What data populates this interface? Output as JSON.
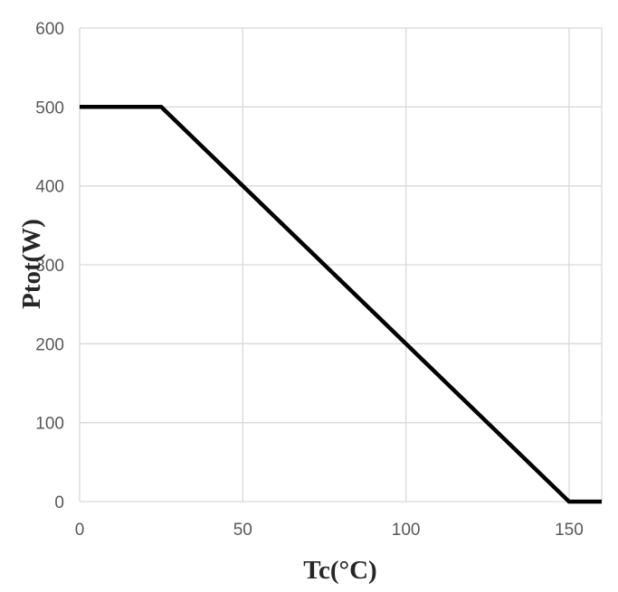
{
  "chart_data": {
    "type": "line",
    "title": "",
    "xlabel": "Tc(°C)",
    "ylabel": "Ptot(W)",
    "xlim": [
      0,
      160
    ],
    "ylim": [
      0,
      600
    ],
    "x_ticks": [
      0,
      50,
      100,
      150
    ],
    "y_ticks": [
      0,
      100,
      200,
      300,
      400,
      500,
      600
    ],
    "x_tick_labels": [
      "0",
      "50",
      "100",
      "150"
    ],
    "y_tick_labels": [
      "0",
      "100",
      "200",
      "300",
      "400",
      "500",
      "600"
    ],
    "grid": true,
    "legend": "none",
    "series": [
      {
        "color": "#000000",
        "points": [
          [
            0,
            500
          ],
          [
            25,
            500
          ],
          [
            150,
            0
          ],
          [
            160,
            0
          ]
        ]
      }
    ],
    "colors": {
      "grid": "#d9d9d9",
      "line": "#000000",
      "tick_text": "#595959",
      "axis_title": "#262626"
    }
  }
}
